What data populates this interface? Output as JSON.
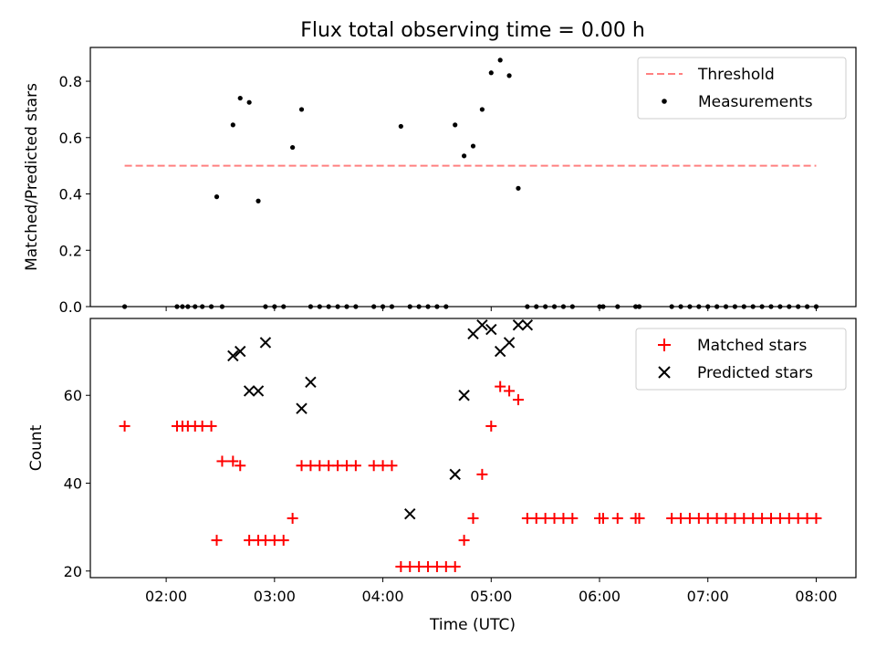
{
  "chart_data": [
    {
      "type": "scatter",
      "title": "Flux total observing time = 0.00 h",
      "ylabel": "Matched/Predicted stars",
      "xlabel": "",
      "xlim": [
        "01:18",
        "08:22"
      ],
      "ylim": [
        0,
        0.92
      ],
      "yticks": [
        "0.0",
        "0.2",
        "0.4",
        "0.6",
        "0.8"
      ],
      "xticks": [
        "02:00",
        "03:00",
        "04:00",
        "05:00",
        "06:00",
        "07:00",
        "08:00"
      ],
      "grid": false,
      "legend_position": "top-right",
      "series": [
        {
          "name": "Threshold",
          "kind": "dashed-line",
          "color": "#ff8080",
          "x": [
            "01:37",
            "08:00"
          ],
          "y": [
            0.5,
            0.5
          ]
        },
        {
          "name": "Measurements",
          "kind": "dot",
          "color": "#000000",
          "x": [
            "01:37",
            "02:06",
            "02:09",
            "02:12",
            "02:16",
            "02:20",
            "02:25",
            "02:28",
            "02:31",
            "02:37",
            "02:41",
            "02:46",
            "02:51",
            "02:55",
            "03:00",
            "03:05",
            "03:10",
            "03:15",
            "03:20",
            "03:25",
            "03:30",
            "03:35",
            "03:40",
            "03:45",
            "03:55",
            "04:00",
            "04:05",
            "04:10",
            "04:15",
            "04:20",
            "04:25",
            "04:30",
            "04:35",
            "04:40",
            "04:45",
            "04:50",
            "04:55",
            "05:00",
            "05:05",
            "05:10",
            "05:15",
            "05:20",
            "05:25",
            "05:30",
            "05:35",
            "05:40",
            "05:45",
            "06:00",
            "06:02",
            "06:10",
            "06:20",
            "06:22",
            "06:40",
            "06:45",
            "06:50",
            "06:55",
            "07:00",
            "07:05",
            "07:10",
            "07:15",
            "07:20",
            "07:25",
            "07:30",
            "07:35",
            "07:40",
            "07:45",
            "07:50",
            "07:55",
            "08:00"
          ],
          "y": [
            0,
            0,
            0,
            0,
            0,
            0,
            0,
            0.39,
            0,
            0.645,
            0.74,
            0.725,
            0.375,
            0,
            0,
            0,
            0.565,
            0.7,
            0,
            0,
            0,
            0,
            0,
            0,
            0,
            0,
            0,
            0.64,
            0,
            0,
            0,
            0,
            0,
            0.645,
            0.535,
            0.57,
            0.7,
            0.83,
            0.875,
            0.82,
            0.42,
            0,
            0,
            0,
            0,
            0,
            0,
            0,
            0,
            0,
            0,
            0,
            0,
            0,
            0,
            0,
            0,
            0,
            0,
            0,
            0,
            0,
            0,
            0,
            0,
            0,
            0,
            0,
            0
          ]
        }
      ]
    },
    {
      "type": "scatter",
      "title": "",
      "ylabel": "Count",
      "xlabel": "Time (UTC)",
      "xlim": [
        "01:18",
        "08:22"
      ],
      "ylim": [
        18.5,
        77.5
      ],
      "yticks": [
        "20",
        "40",
        "60"
      ],
      "xticks": [
        "02:00",
        "03:00",
        "04:00",
        "05:00",
        "06:00",
        "07:00",
        "08:00"
      ],
      "grid": false,
      "legend_position": "top-right",
      "series": [
        {
          "name": "Matched stars",
          "kind": "plus",
          "color": "#ff0000",
          "x": [
            "01:37",
            "02:06",
            "02:09",
            "02:12",
            "02:16",
            "02:20",
            "02:25",
            "02:28",
            "02:31",
            "02:37",
            "02:41",
            "02:46",
            "02:51",
            "02:55",
            "03:00",
            "03:05",
            "03:10",
            "03:15",
            "03:20",
            "03:25",
            "03:30",
            "03:35",
            "03:40",
            "03:45",
            "03:55",
            "04:00",
            "04:05",
            "04:10",
            "04:15",
            "04:20",
            "04:25",
            "04:30",
            "04:35",
            "04:40",
            "04:45",
            "04:50",
            "04:55",
            "05:00",
            "05:05",
            "05:10",
            "05:15",
            "05:20",
            "05:25",
            "05:30",
            "05:35",
            "05:40",
            "05:45",
            "06:00",
            "06:02",
            "06:10",
            "06:20",
            "06:22",
            "06:40",
            "06:45",
            "06:50",
            "06:55",
            "07:00",
            "07:05",
            "07:10",
            "07:15",
            "07:20",
            "07:25",
            "07:30",
            "07:35",
            "07:40",
            "07:45",
            "07:50",
            "07:55",
            "08:00"
          ],
          "y": [
            53,
            53,
            53,
            53,
            53,
            53,
            53,
            27,
            45,
            45,
            44,
            27,
            27,
            27,
            27,
            27,
            32,
            44,
            44,
            44,
            44,
            44,
            44,
            44,
            44,
            44,
            44,
            21,
            21,
            21,
            21,
            21,
            21,
            21,
            27,
            32,
            42,
            53,
            62,
            61,
            59,
            32,
            32,
            32,
            32,
            32,
            32,
            32,
            32,
            32,
            32,
            32,
            32,
            32,
            32,
            32,
            32,
            32,
            32,
            32,
            32,
            32,
            32,
            32,
            32,
            32,
            32,
            32,
            32
          ]
        },
        {
          "name": "Predicted stars",
          "kind": "x",
          "color": "#000000",
          "x": [
            "02:37",
            "02:41",
            "02:46",
            "02:51",
            "02:55",
            "03:15",
            "03:20",
            "04:15",
            "04:40",
            "04:45",
            "04:50",
            "04:55",
            "05:00",
            "05:05",
            "05:10",
            "05:15",
            "05:20"
          ],
          "y": [
            69,
            70,
            61,
            61,
            72,
            57,
            63,
            33,
            42,
            60,
            74,
            76,
            75,
            70,
            72,
            76,
            76
          ]
        }
      ]
    }
  ]
}
